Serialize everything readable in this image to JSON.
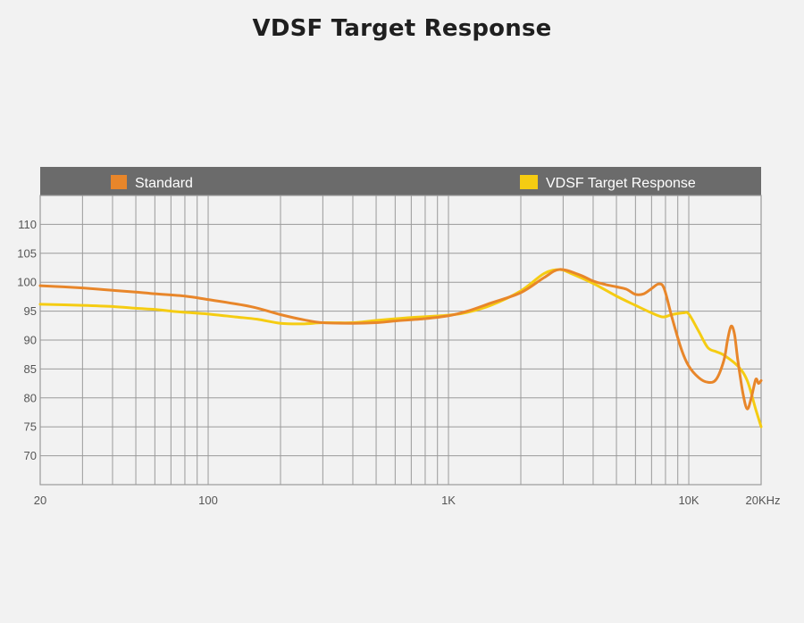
{
  "title": "VDSF Target Response",
  "colors": {
    "background": "#f2f2f2",
    "legend_bar": "#6b6b6b",
    "grid": "#9a9a9a",
    "standard": "#e8862a",
    "vdsf": "#f5cc12"
  },
  "chart_data": {
    "type": "line",
    "title": "VDSF Target Response",
    "xlabel": "",
    "ylabel": "",
    "x_scale": "log",
    "xlim": [
      20,
      20000
    ],
    "ylim": [
      65,
      115
    ],
    "grid": true,
    "legend_position": "top",
    "x_tick_labels": [
      {
        "value": 20,
        "label": "20"
      },
      {
        "value": 100,
        "label": "100"
      },
      {
        "value": 1000,
        "label": "1K"
      },
      {
        "value": 10000,
        "label": "10K"
      },
      {
        "value": 20000,
        "label": "20KHz"
      }
    ],
    "y_ticks": [
      110,
      105,
      100,
      95,
      90,
      85,
      80,
      75,
      70
    ],
    "series": [
      {
        "name": "Standard",
        "color": "#e8862a",
        "points": [
          [
            20,
            99.4
          ],
          [
            25,
            99.2
          ],
          [
            30,
            99.0
          ],
          [
            35,
            98.8
          ],
          [
            40,
            98.6
          ],
          [
            50,
            98.3
          ],
          [
            60,
            98.0
          ],
          [
            80,
            97.6
          ],
          [
            100,
            97.0
          ],
          [
            150,
            95.8
          ],
          [
            200,
            94.4
          ],
          [
            250,
            93.5
          ],
          [
            300,
            93.0
          ],
          [
            400,
            92.9
          ],
          [
            500,
            93.0
          ],
          [
            600,
            93.3
          ],
          [
            800,
            93.7
          ],
          [
            1000,
            94.2
          ],
          [
            1200,
            95.0
          ],
          [
            1500,
            96.4
          ],
          [
            2000,
            98.2
          ],
          [
            2500,
            100.8
          ],
          [
            2900,
            102.2
          ],
          [
            3500,
            101.3
          ],
          [
            4000,
            100.2
          ],
          [
            4500,
            99.6
          ],
          [
            5000,
            99.2
          ],
          [
            5500,
            98.8
          ],
          [
            6000,
            97.9
          ],
          [
            6500,
            98.0
          ],
          [
            7000,
            98.9
          ],
          [
            7500,
            99.7
          ],
          [
            7900,
            98.9
          ],
          [
            8500,
            94.0
          ],
          [
            9300,
            88.5
          ],
          [
            10000,
            85.5
          ],
          [
            11000,
            83.5
          ],
          [
            12000,
            82.7
          ],
          [
            13000,
            83.2
          ],
          [
            14000,
            86.5
          ],
          [
            14500,
            90.0
          ],
          [
            15000,
            92.4
          ],
          [
            15500,
            91.0
          ],
          [
            16000,
            86.5
          ],
          [
            16800,
            80.8
          ],
          [
            17500,
            78.1
          ],
          [
            18200,
            80.0
          ],
          [
            19000,
            83.2
          ],
          [
            19500,
            82.5
          ],
          [
            20000,
            83.0
          ]
        ]
      },
      {
        "name": "VDSF Target Response",
        "color": "#f5cc12",
        "points": [
          [
            20,
            96.2
          ],
          [
            30,
            96.0
          ],
          [
            40,
            95.8
          ],
          [
            50,
            95.5
          ],
          [
            60,
            95.3
          ],
          [
            70,
            95.0
          ],
          [
            80,
            94.8
          ],
          [
            100,
            94.5
          ],
          [
            130,
            94.0
          ],
          [
            160,
            93.6
          ],
          [
            200,
            92.9
          ],
          [
            250,
            92.8
          ],
          [
            300,
            93.0
          ],
          [
            400,
            93.0
          ],
          [
            500,
            93.4
          ],
          [
            700,
            93.9
          ],
          [
            1000,
            94.3
          ],
          [
            1200,
            94.8
          ],
          [
            1500,
            96.0
          ],
          [
            2000,
            98.5
          ],
          [
            2500,
            101.5
          ],
          [
            2900,
            102.2
          ],
          [
            3200,
            101.6
          ],
          [
            4000,
            99.8
          ],
          [
            5000,
            97.6
          ],
          [
            6000,
            96.0
          ],
          [
            7000,
            94.7
          ],
          [
            7800,
            94.0
          ],
          [
            8500,
            94.4
          ],
          [
            9500,
            94.7
          ],
          [
            10000,
            94.5
          ],
          [
            11000,
            91.5
          ],
          [
            12000,
            88.7
          ],
          [
            13000,
            88.0
          ],
          [
            14000,
            87.4
          ],
          [
            16000,
            85.5
          ],
          [
            17500,
            83.0
          ],
          [
            19000,
            78.0
          ],
          [
            20000,
            75.0
          ]
        ]
      }
    ]
  }
}
